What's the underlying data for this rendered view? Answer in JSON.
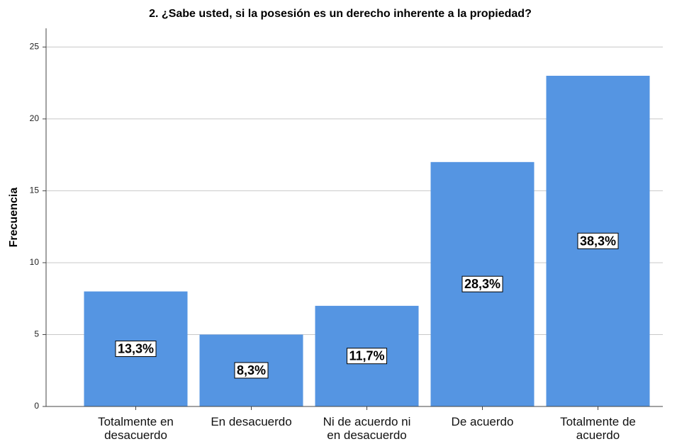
{
  "chart_data": {
    "type": "bar",
    "title": "2. ¿Sabe usted, si la posesión es un derecho inherente a la propiedad?",
    "y_label": "Frecuencia",
    "categories": [
      "Totalmente en\ndesacuerdo",
      "En desacuerdo",
      "Ni de acuerdo ni\nen desacuerdo",
      "De acuerdo",
      "Totalmente de\nacuerdo"
    ],
    "values": [
      8,
      5,
      7,
      17,
      23
    ],
    "data_labels": [
      "13,3%",
      "8,3%",
      "11,7%",
      "28,3%",
      "38,3%"
    ],
    "color": "#5595e2",
    "ylim": [
      0,
      26.3
    ],
    "yticks": [
      0,
      5,
      10,
      15,
      20,
      25
    ],
    "grid": true
  }
}
